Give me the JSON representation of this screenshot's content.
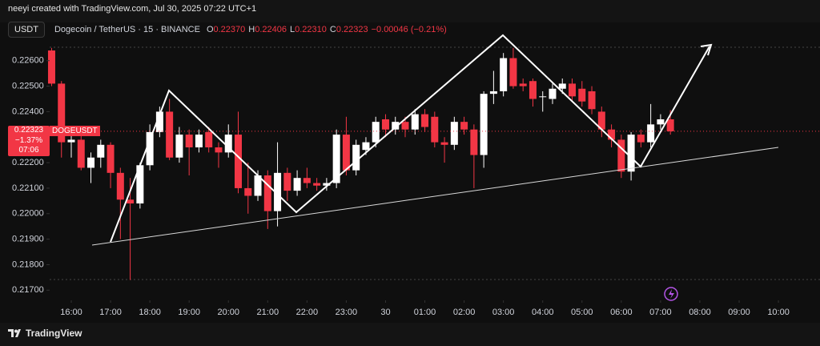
{
  "chart_data": {
    "type": "candlestick",
    "title": "neeyi created with TradingView.com, Jul 30, 2025 07:22 UTC+1",
    "quote_currency": "USDT",
    "symbol_title": "Dogecoin / TetherUS · 15 · BINANCE",
    "legend": {
      "open_key": "O",
      "open": "0.22370",
      "high_key": "H",
      "high": "0.22406",
      "low_key": "L",
      "low": "0.22310",
      "close_key": "C",
      "close": "0.22323",
      "change": "−0.00046 (−0.21%)"
    },
    "last_price": {
      "value": 0.22323,
      "label": "0.22323",
      "symbol": "DOGEUSDT",
      "change": "−1.37%",
      "countdown": "07:06"
    },
    "brand": "TradingView",
    "up_color": "#ffffff",
    "down_color": "#f23645",
    "x": [
      "15:30",
      "15:45",
      "16:00",
      "16:15",
      "16:30",
      "16:45",
      "17:00",
      "17:15",
      "17:30",
      "17:45",
      "18:00",
      "18:15",
      "18:30",
      "18:45",
      "19:00",
      "19:15",
      "19:30",
      "19:45",
      "20:00",
      "20:15",
      "20:30",
      "20:45",
      "21:00",
      "21:15",
      "21:30",
      "21:45",
      "22:00",
      "22:15",
      "22:30",
      "22:45",
      "23:00",
      "23:15",
      "23:30",
      "23:45",
      "00:00",
      "00:15",
      "00:30",
      "00:45",
      "01:00",
      "01:15",
      "01:30",
      "01:45",
      "02:00",
      "02:15",
      "02:30",
      "02:45",
      "03:00",
      "03:15",
      "03:30",
      "03:45",
      "04:00",
      "04:15",
      "04:30",
      "04:45",
      "05:00",
      "05:15",
      "05:30",
      "05:45",
      "06:00",
      "06:15",
      "06:30",
      "06:45",
      "07:00",
      "07:15"
    ],
    "open": [
      0.2264,
      0.2251,
      0.2228,
      0.2229,
      0.2218,
      0.2222,
      0.2227,
      0.2216,
      0.22055,
      0.2204,
      0.2219,
      0.2232,
      0.224,
      0.2222,
      0.2231,
      0.2226,
      0.2232,
      0.2226,
      0.2224,
      0.2231,
      0.221,
      0.2207,
      0.2215,
      0.2201,
      0.2216,
      0.2209,
      0.2214,
      0.2212,
      0.2211,
      0.2212,
      0.2231,
      0.2217,
      0.2225,
      0.2228,
      0.2237,
      0.2233,
      0.2236,
      0.2233,
      0.2239,
      0.2238,
      0.2228,
      0.2227,
      0.2236,
      0.2233,
      0.2223,
      0.2247,
      0.2248,
      0.2261,
      0.2251,
      0.2252,
      0.2246,
      0.2245,
      0.2249,
      0.2251,
      0.2249,
      0.2248,
      0.224,
      0.2233,
      0.2229,
      0.22165,
      0.2231,
      0.2228,
      0.2235,
      0.2237
    ],
    "high": [
      0.2265,
      0.2252,
      0.2232,
      0.2231,
      0.2224,
      0.2229,
      0.2228,
      0.2218,
      0.2214,
      0.222,
      0.2235,
      0.2242,
      0.2245,
      0.2234,
      0.2233,
      0.2233,
      0.2234,
      0.2228,
      0.2235,
      0.224,
      0.222,
      0.2217,
      0.2217,
      0.2228,
      0.2218,
      0.2217,
      0.2218,
      0.2214,
      0.2214,
      0.2233,
      0.2238,
      0.2229,
      0.223,
      0.2238,
      0.2239,
      0.2238,
      0.2238,
      0.2241,
      0.2241,
      0.224,
      0.223,
      0.2238,
      0.2238,
      0.2235,
      0.2248,
      0.2256,
      0.2263,
      0.2265,
      0.2253,
      0.2253,
      0.2248,
      0.2251,
      0.2253,
      0.2253,
      0.2252,
      0.225,
      0.2242,
      0.2235,
      0.2231,
      0.2232,
      0.2233,
      0.2243,
      0.2239,
      0.22406
    ],
    "low": [
      0.225,
      0.2222,
      0.2222,
      0.2217,
      0.2212,
      0.2218,
      0.221,
      0.219,
      0.2174,
      0.2202,
      0.2217,
      0.223,
      0.2221,
      0.222,
      0.2215,
      0.2224,
      0.2224,
      0.2218,
      0.2222,
      0.2208,
      0.22,
      0.2205,
      0.2194,
      0.2195,
      0.2205,
      0.2207,
      0.221,
      0.2209,
      0.2209,
      0.221,
      0.2215,
      0.2215,
      0.2223,
      0.2226,
      0.223,
      0.2231,
      0.223,
      0.2231,
      0.2232,
      0.2226,
      0.222,
      0.2225,
      0.2231,
      0.221,
      0.2218,
      0.2243,
      0.2246,
      0.2249,
      0.2248,
      0.2242,
      0.224,
      0.2243,
      0.2247,
      0.2244,
      0.2242,
      0.2239,
      0.223,
      0.2226,
      0.2214,
      0.2213,
      0.2226,
      0.2226,
      0.2233,
      0.2231
    ],
    "close": [
      0.2251,
      0.2228,
      0.2229,
      0.2218,
      0.2222,
      0.2227,
      0.2216,
      0.22055,
      0.2204,
      0.2219,
      0.2232,
      0.224,
      0.2222,
      0.2231,
      0.2226,
      0.2231,
      0.2226,
      0.2224,
      0.2231,
      0.221,
      0.2207,
      0.2215,
      0.2201,
      0.2216,
      0.2209,
      0.2214,
      0.2212,
      0.2211,
      0.2212,
      0.2231,
      0.2217,
      0.2227,
      0.2228,
      0.2236,
      0.2233,
      0.2236,
      0.2233,
      0.2239,
      0.2234,
      0.2228,
      0.2227,
      0.2236,
      0.2233,
      0.2223,
      0.2247,
      0.2248,
      0.2261,
      0.225,
      0.225,
      0.2245,
      0.2246,
      0.2249,
      0.2251,
      0.2246,
      0.2244,
      0.2241,
      0.2233,
      0.2229,
      0.22165,
      0.2231,
      0.2228,
      0.2235,
      0.2237,
      0.22323
    ],
    "ylim": [
      0.2166,
      0.2275
    ],
    "yticks": [
      {
        "value": 0.226,
        "label": "0.22600"
      },
      {
        "value": 0.225,
        "label": "0.22500"
      },
      {
        "value": 0.224,
        "label": "0.22400"
      },
      {
        "value": 0.223,
        "label": "0.22300"
      },
      {
        "value": 0.222,
        "label": "0.22200"
      },
      {
        "value": 0.221,
        "label": "0.22100"
      },
      {
        "value": 0.22,
        "label": "0.22000"
      },
      {
        "value": 0.219,
        "label": "0.21900"
      },
      {
        "value": 0.218,
        "label": "0.21800"
      },
      {
        "value": 0.217,
        "label": "0.21700"
      }
    ],
    "xticks": [
      "16:00",
      "17:00",
      "18:00",
      "19:00",
      "20:00",
      "21:00",
      "22:00",
      "23:00",
      {
        "value": "00:00",
        "label": "30"
      },
      "01:00",
      "02:00",
      "03:00",
      "04:00",
      "05:00",
      "06:00",
      "07:00",
      "08:00",
      "09:00",
      "10:00"
    ]
  }
}
